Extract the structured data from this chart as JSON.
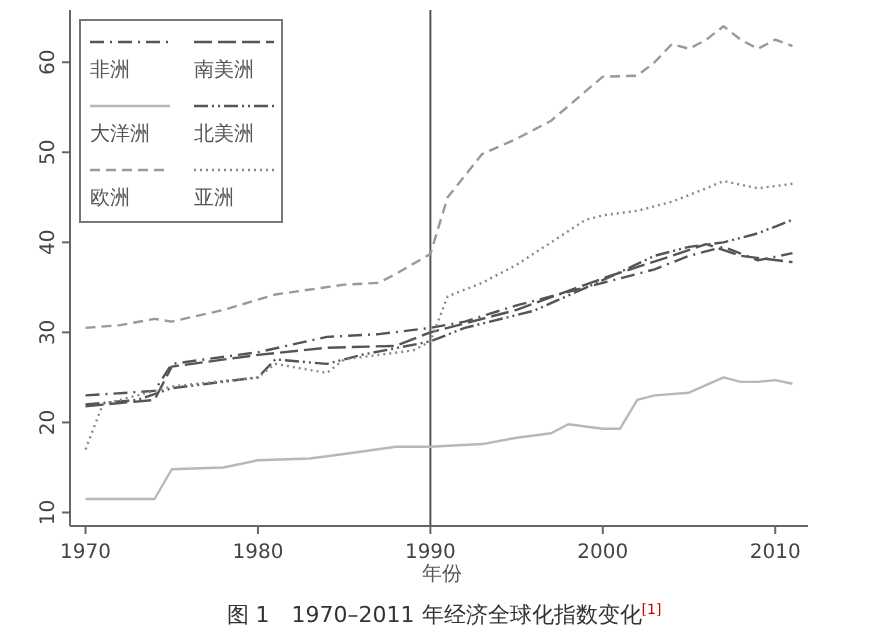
{
  "chart_data": {
    "type": "line",
    "title": "图 1　1970–2011 年经济全球化指数变化$^{[1]}$",
    "xlabel": "年份",
    "xlim": [
      1969.1,
      2011.9
    ],
    "ylim": [
      8.5,
      65.8
    ],
    "xticks": [
      1970,
      1980,
      1990,
      2000,
      2010
    ],
    "yticks": [
      10,
      20,
      30,
      40,
      50,
      60
    ],
    "grid": false,
    "legend": "top left",
    "marker": "none",
    "ref_lines": [
      {
        "axis": "x",
        "value": 1990,
        "label": null,
        "color": "#555555"
      }
    ],
    "series": [
      {
        "name": "非洲",
        "color": "#555555",
        "line_style": "dashdot",
        "x": [
          1970,
          1974,
          1975,
          1980,
          1984,
          1987,
          1990,
          1992,
          1995,
          2000,
          2003,
          2005,
          2007,
          2009,
          2011
        ],
        "values": [
          23,
          23.5,
          26.5,
          27.8,
          29.5,
          29.8,
          30.5,
          31.2,
          33,
          35.5,
          37,
          38.5,
          39.5,
          38,
          38.8
        ]
      },
      {
        "name": "南美洲",
        "color": "#555555",
        "line_style": "longdash",
        "x": [
          1970,
          1974,
          1975,
          1980,
          1984,
          1988,
          1990,
          1992,
          1995,
          2000,
          2004,
          2006,
          2008,
          2011
        ],
        "values": [
          21.8,
          22.5,
          26.2,
          27.5,
          28.3,
          28.5,
          30,
          31,
          32.5,
          36,
          38.5,
          39.8,
          38.5,
          37.8
        ]
      },
      {
        "name": "大洋洲",
        "color": "#b8b8b8",
        "line_style": "solid",
        "x": [
          1970,
          1974,
          1975,
          1978,
          1980,
          1983,
          1985,
          1988,
          1990,
          1993,
          1995,
          1997,
          1998,
          2000,
          2001,
          2002,
          2003,
          2005,
          2007,
          2008,
          2009,
          2010,
          2011
        ],
        "values": [
          11.5,
          11.5,
          14.8,
          15,
          15.8,
          16,
          16.5,
          17.3,
          17.3,
          17.6,
          18.3,
          18.8,
          19.8,
          19.3,
          19.3,
          22.5,
          23,
          23.3,
          25,
          24.5,
          24.5,
          24.7,
          24.3
        ]
      },
      {
        "name": "北美洲",
        "color": "#555555",
        "line_style": "dashdotdot",
        "x": [
          1970,
          1973,
          1975,
          1980,
          1981,
          1984,
          1986,
          1990,
          1992,
          1996,
          2000,
          2003,
          2005,
          2007,
          2009,
          2011
        ],
        "values": [
          22,
          22.5,
          23.8,
          25,
          27,
          26.5,
          27.5,
          29,
          30.5,
          32.4,
          35.8,
          38.5,
          39.5,
          40,
          41,
          42.5
        ]
      },
      {
        "name": "欧洲",
        "color": "#999999",
        "line_style": "dashed",
        "x": [
          1970,
          1972,
          1974,
          1975,
          1978,
          1981,
          1985,
          1987,
          1988,
          1990,
          1991,
          1993,
          1995,
          1997,
          2000,
          2002,
          2003,
          2004,
          2005,
          2006,
          2007,
          2008,
          2009,
          2010,
          2011
        ],
        "values": [
          30.5,
          30.8,
          31.5,
          31.2,
          32.5,
          34.2,
          35.3,
          35.5,
          36.5,
          38.7,
          45,
          49.8,
          51.5,
          53.5,
          58.4,
          58.5,
          60,
          62,
          61.5,
          62.5,
          64,
          62.5,
          61.5,
          62.5,
          61.8
        ]
      },
      {
        "name": "亚洲",
        "color": "#888888",
        "line_style": "dotted",
        "x": [
          1970,
          1971,
          1975,
          1980,
          1981,
          1984,
          1985,
          1989,
          1990,
          1991,
          1993,
          1995,
          1997,
          1999,
          2000,
          2002,
          2004,
          2006,
          2007,
          2009,
          2011
        ],
        "values": [
          17,
          22,
          24,
          25,
          26.5,
          25.5,
          27,
          28,
          29,
          34,
          35.5,
          37.5,
          40,
          42.5,
          43,
          43.5,
          44.5,
          46,
          46.8,
          46,
          46.5
        ]
      }
    ]
  }
}
